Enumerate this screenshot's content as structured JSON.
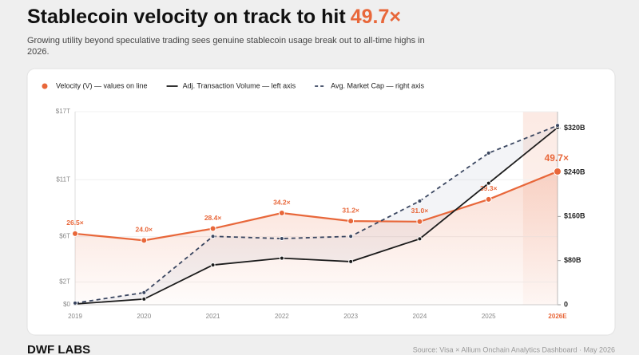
{
  "chart_data": {
    "type": "line",
    "title": "Stablecoin velocity on track to hit",
    "title_highlight": "49.7×",
    "subtitle": "Growing utility beyond speculative trading sees genuine stablecoin usage break out to all-time highs in 2026.",
    "categories": [
      "2019",
      "2020",
      "2021",
      "2022",
      "2023",
      "2024",
      "2025",
      "2026E"
    ],
    "highlight_category": 7,
    "ylim": [
      0,
      17
    ],
    "yticks": [
      {
        "value": 0,
        "label": "$0"
      },
      {
        "value": 2,
        "label": "$2T"
      },
      {
        "value": 6,
        "label": "$6T"
      },
      {
        "value": 11,
        "label": "$11T"
      },
      {
        "value": 17,
        "label": "$17T"
      }
    ],
    "y2lim": [
      0,
      350
    ],
    "y2ticks": [
      {
        "value": 0,
        "label": "0"
      },
      {
        "value": 80,
        "label": "$80B"
      },
      {
        "value": 160,
        "label": "$160B"
      },
      {
        "value": 240,
        "label": "$240B"
      },
      {
        "value": 320,
        "label": "$320B"
      }
    ],
    "velocity_lim": [
      0,
      72
    ],
    "grid": true,
    "legend": "top-left",
    "series": [
      {
        "name": "Velocity (V) — values on line",
        "color": "#e8673a",
        "axis": "velocity",
        "style": "solid",
        "values": [
          26.5,
          24.0,
          28.4,
          34.2,
          31.2,
          31.0,
          39.3,
          49.7
        ],
        "value_labels": [
          "26.5×",
          "24.0×",
          "28.4×",
          "34.2×",
          "31.2×",
          "31.0×",
          "39.3×",
          "49.7×"
        ]
      },
      {
        "name": "Adj. Transaction Volume — left axis",
        "color": "#1c1c1c",
        "axis": "y",
        "style": "solid",
        "values": [
          0.07,
          0.5,
          3.5,
          4.1,
          3.8,
          5.8,
          10.7,
          15.6
        ]
      },
      {
        "name": "Avg. Market Cap — right axis",
        "color": "#3a4660",
        "axis": "y2",
        "style": "dashed",
        "values": [
          3,
          22,
          124,
          120,
          124,
          188,
          275,
          325
        ]
      }
    ],
    "logo": "DWF LABS",
    "source": "Source: Visa × Allium Onchain Analytics Dashboard · May 2026"
  }
}
